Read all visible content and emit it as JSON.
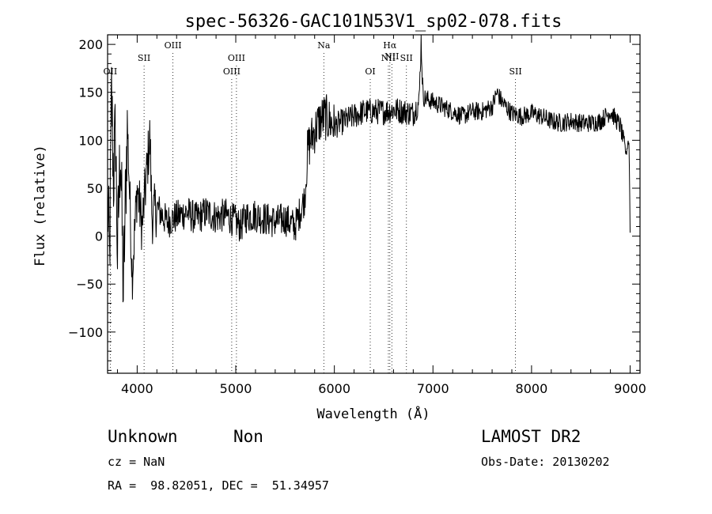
{
  "chart_data": {
    "type": "line",
    "title": "spec-56326-GAC101N53V1_sp02-078.fits",
    "xlabel": "Wavelength (Å)",
    "ylabel": "Flux (relative)",
    "xlim": [
      3700,
      9100
    ],
    "ylim": [
      -143,
      210
    ],
    "xticks": [
      4000,
      5000,
      6000,
      7000,
      8000,
      9000
    ],
    "yticks": [
      -100,
      -50,
      0,
      50,
      100,
      150,
      200
    ],
    "grid": false,
    "series": [
      {
        "x": [
          3700,
          3720,
          3740,
          3760,
          3780,
          3800,
          3830,
          3860,
          3900,
          3950,
          4000,
          4050,
          4100,
          4130,
          4150,
          4200,
          4300,
          4400,
          4500,
          4600,
          4700,
          4800,
          4900,
          5000,
          5050,
          5100,
          5200,
          5300,
          5400,
          5500,
          5600,
          5700,
          5730,
          5760,
          5800,
          5850,
          5900,
          6000,
          6100,
          6200,
          6300,
          6400,
          6500,
          6600,
          6700,
          6800,
          6860,
          6880,
          6900,
          7000,
          7100,
          7200,
          7300,
          7400,
          7500,
          7600,
          7650,
          7700,
          7800,
          7900,
          8000,
          8100,
          8200,
          8300,
          8400,
          8500,
          8600,
          8700,
          8800,
          8900,
          8960,
          8980,
          8990,
          9000
        ],
        "y": [
          40,
          -30,
          150,
          60,
          110,
          -20,
          100,
          -60,
          120,
          -40,
          50,
          10,
          70,
          105,
          20,
          30,
          15,
          20,
          25,
          18,
          25,
          20,
          22,
          15,
          10,
          20,
          22,
          18,
          15,
          18,
          10,
          40,
          90,
          100,
          110,
          120,
          125,
          115,
          120,
          125,
          130,
          130,
          130,
          132,
          130,
          128,
          140,
          205,
          145,
          140,
          135,
          130,
          125,
          130,
          130,
          135,
          150,
          140,
          128,
          125,
          128,
          125,
          120,
          118,
          120,
          118,
          118,
          120,
          130,
          115,
          85,
          100,
          95,
          5
        ]
      }
    ],
    "lines": [
      {
        "label": "OII",
        "x": 3727,
        "row": 1
      },
      {
        "label": "SII",
        "x": 4070,
        "row": 2
      },
      {
        "label": "OIII",
        "x": 4363,
        "row": 3
      },
      {
        "label": "OIII",
        "x": 4959,
        "row": 1
      },
      {
        "label": "OIII",
        "x": 5007,
        "row": 2
      },
      {
        "label": "Na",
        "x": 5893,
        "row": 3
      },
      {
        "label": "OI",
        "x": 6364,
        "row": 1
      },
      {
        "label": "Hα",
        "x": 6563,
        "row": 3
      },
      {
        "label": "NII",
        "x": 6548,
        "row": 2
      },
      {
        "label": "NII",
        "x": 6583,
        "row": 0
      },
      {
        "label": "SII",
        "x": 6731,
        "row": 2
      },
      {
        "label": "SII",
        "x": 7837,
        "row": 1
      }
    ]
  },
  "info": {
    "object_class": "Unknown",
    "subclass": "Non",
    "survey": "LAMOST DR2",
    "cz": "cz = NaN",
    "obs_date": "Obs-Date: 20130202",
    "coords": "RA =  98.82051, DEC =  51.34957"
  }
}
